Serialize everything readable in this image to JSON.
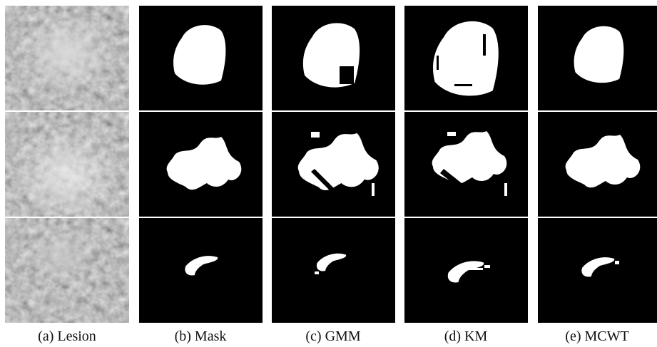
{
  "figure": {
    "captions": [
      "(a) Lesion",
      "(b) Mask",
      "(c) GMM",
      "(d) KM",
      "(e) MCWT"
    ]
  }
}
